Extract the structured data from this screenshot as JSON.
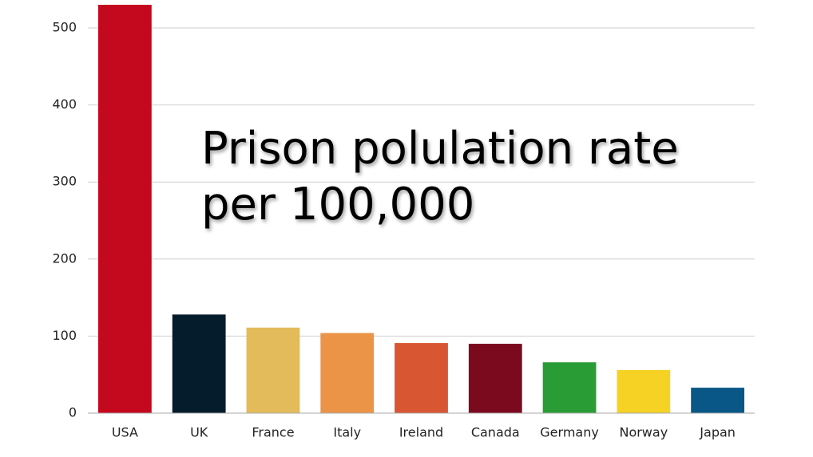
{
  "chart_data": {
    "type": "bar",
    "title": "Prison polulation rate per 100,000",
    "categories": [
      "USA",
      "UK",
      "France",
      "Italy",
      "Ireland",
      "Canada",
      "Germany",
      "Norway",
      "Japan"
    ],
    "values": [
      530,
      128,
      111,
      104,
      91,
      90,
      66,
      56,
      33
    ],
    "colors": [
      "#c4081e",
      "#051c2c",
      "#e4bb5a",
      "#eb9447",
      "#d95632",
      "#7c0a1f",
      "#2a9c35",
      "#f6d225",
      "#085786"
    ],
    "ylim": [
      0,
      530
    ],
    "yticks": [
      0,
      100,
      200,
      300,
      400,
      500
    ],
    "grid": true
  }
}
